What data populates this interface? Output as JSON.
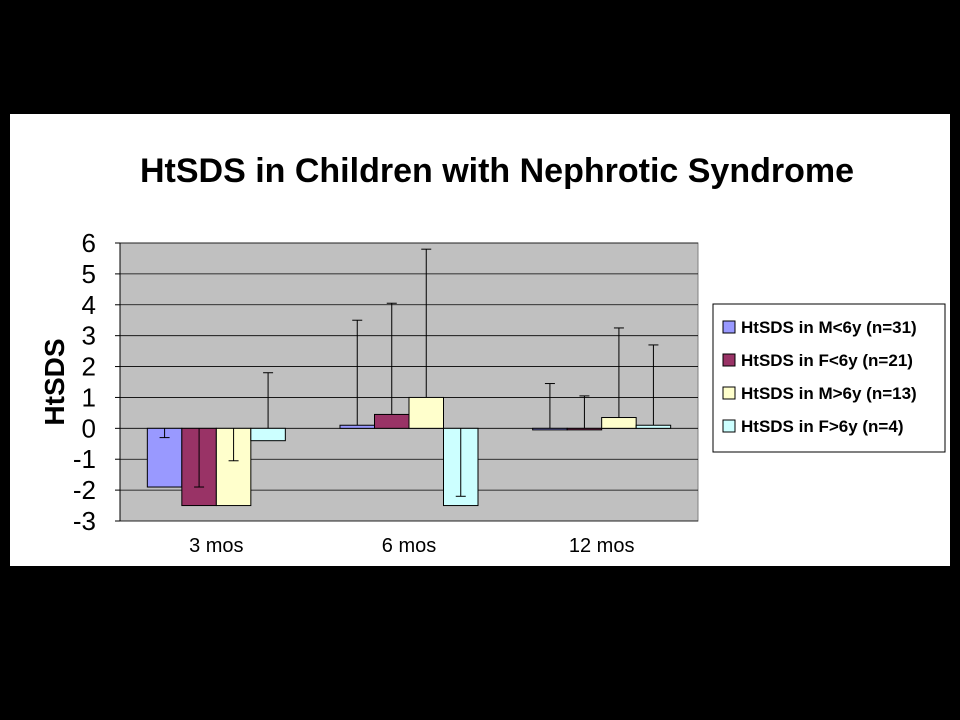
{
  "chart_data": {
    "type": "bar",
    "title": "HtSDS in Children with Nephrotic Syndrome",
    "xlabel": "",
    "ylabel": "HtSDS",
    "ylim": [
      -3,
      6
    ],
    "yticks": [
      "6",
      "5",
      "4",
      "3",
      "2",
      "1",
      "0",
      "-1",
      "-2",
      "-3"
    ],
    "categories": [
      "3 mos",
      "6 mos",
      "12 mos"
    ],
    "grid": true,
    "legend_position": "right",
    "plot_background": "#c0c0c0",
    "series": [
      {
        "name": "HtSDS in M<6y (n=31)",
        "color": "#9999ff",
        "values": [
          -1.9,
          0.1,
          -0.05
        ],
        "error_upper": [
          1.6,
          3.4,
          1.5
        ]
      },
      {
        "name": "HtSDS in F<6y (n=21)",
        "color": "#993366",
        "values": [
          -2.5,
          0.45,
          -0.05
        ],
        "error_upper": [
          0.6,
          3.6,
          1.1
        ]
      },
      {
        "name": "HtSDS in M>6y (n=13)",
        "color": "#ffffcc",
        "values": [
          -2.5,
          1.0,
          0.35
        ],
        "error_upper": [
          1.45,
          4.8,
          2.9
        ]
      },
      {
        "name": "HtSDS in F>6y (n=4)",
        "color": "#ccffff",
        "values": [
          -0.4,
          -2.5,
          0.1
        ],
        "error_upper": [
          2.2,
          0.3,
          2.6
        ]
      }
    ]
  }
}
